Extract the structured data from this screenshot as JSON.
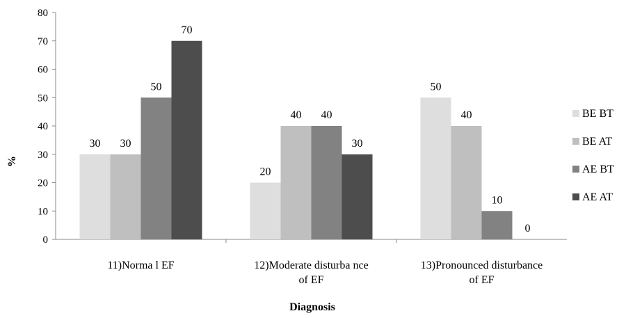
{
  "chart_data": {
    "type": "bar",
    "categories": [
      [
        "11)Norma l EF"
      ],
      [
        "12)Moderate disturba nce",
        "of EF"
      ],
      [
        "13)Pronounced disturbance",
        "of EF"
      ]
    ],
    "series": [
      {
        "name": "BE BT",
        "color": "#dedede",
        "values": [
          30,
          20,
          50
        ]
      },
      {
        "name": "BE AT",
        "color": "#bfbfbf",
        "values": [
          30,
          40,
          40
        ]
      },
      {
        "name": "AE BT",
        "color": "#828282",
        "values": [
          50,
          40,
          10
        ]
      },
      {
        "name": "AE AT",
        "color": "#4d4d4d",
        "values": [
          70,
          30,
          0
        ]
      }
    ],
    "ylabel": "%",
    "xlabel": "Diagnosis",
    "ylim": [
      0,
      80
    ],
    "yticks": [
      0,
      10,
      20,
      30,
      40,
      50,
      60,
      70,
      80
    ],
    "legend_position": "right",
    "grid": false
  }
}
